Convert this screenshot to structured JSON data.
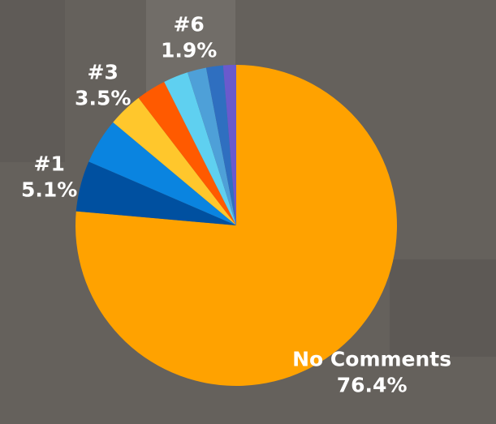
{
  "chart_data": {
    "type": "pie",
    "categories": [
      "No Comments",
      "#1",
      null,
      "#3",
      null,
      null,
      "#6",
      null,
      null
    ],
    "values": [
      76.4,
      5.1,
      4.6,
      3.5,
      3.0,
      2.5,
      1.9,
      1.7,
      1.3
    ],
    "value_labels": [
      "76.4%",
      "5.1%",
      null,
      "3.5%",
      null,
      null,
      "1.9%",
      null,
      null
    ],
    "colors": [
      "#ffa200",
      "#0050a0",
      "#0a84e0",
      "#ffc72c",
      "#ff5a00",
      "#5fd0f0",
      "#4ea0d8",
      "#2f6fc0",
      "#6a5acd"
    ]
  }
}
